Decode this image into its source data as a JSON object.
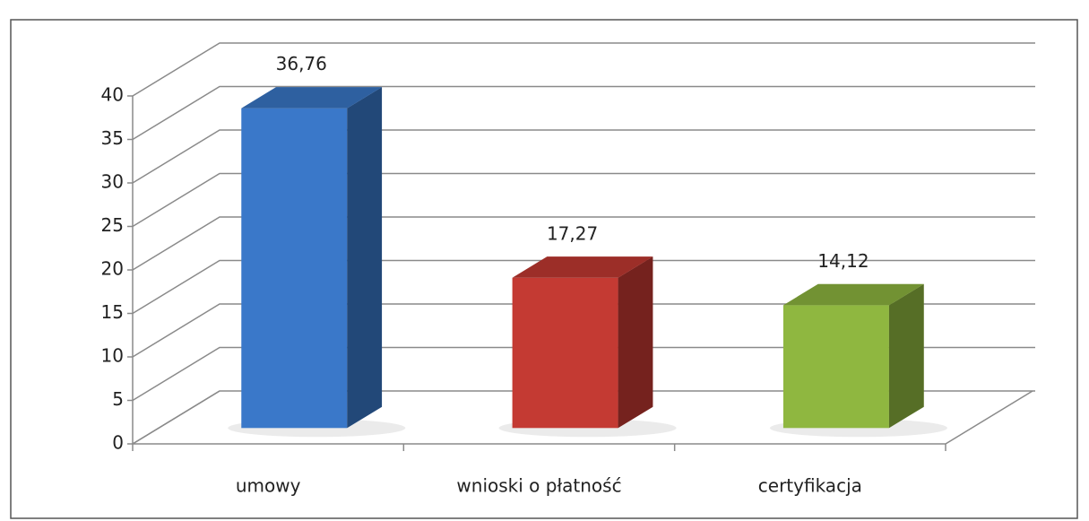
{
  "chart_data": {
    "type": "bar3d",
    "categories": [
      "umowy",
      "wnioski o płatność",
      "certyfikacja"
    ],
    "values": [
      36.76,
      17.27,
      14.12
    ],
    "value_labels": [
      "36,76",
      "17,27",
      "14,12"
    ],
    "colors": [
      "#3a78c9",
      "#c43a33",
      "#8fb740"
    ],
    "ylim": [
      0,
      40
    ],
    "yticks": [
      0,
      5,
      10,
      15,
      20,
      25,
      30,
      35,
      40
    ],
    "grid": true
  }
}
